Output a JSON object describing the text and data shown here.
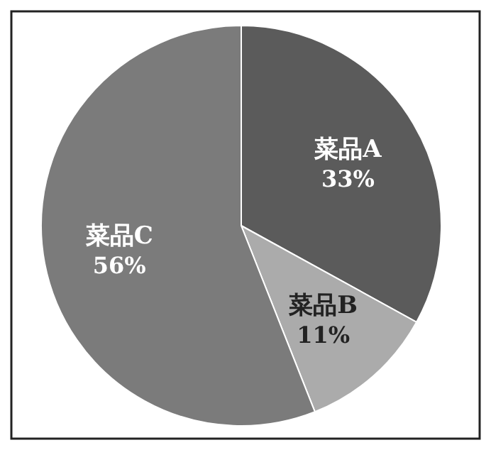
{
  "chart_data": {
    "type": "pie",
    "categories": [
      "菜品A",
      "菜品B",
      "菜品C"
    ],
    "values": [
      33,
      11,
      56
    ],
    "colors": [
      "#5b5b5b",
      "#ababab",
      "#7b7b7b"
    ],
    "value_labels": [
      "33%",
      "11%",
      "56%"
    ]
  }
}
